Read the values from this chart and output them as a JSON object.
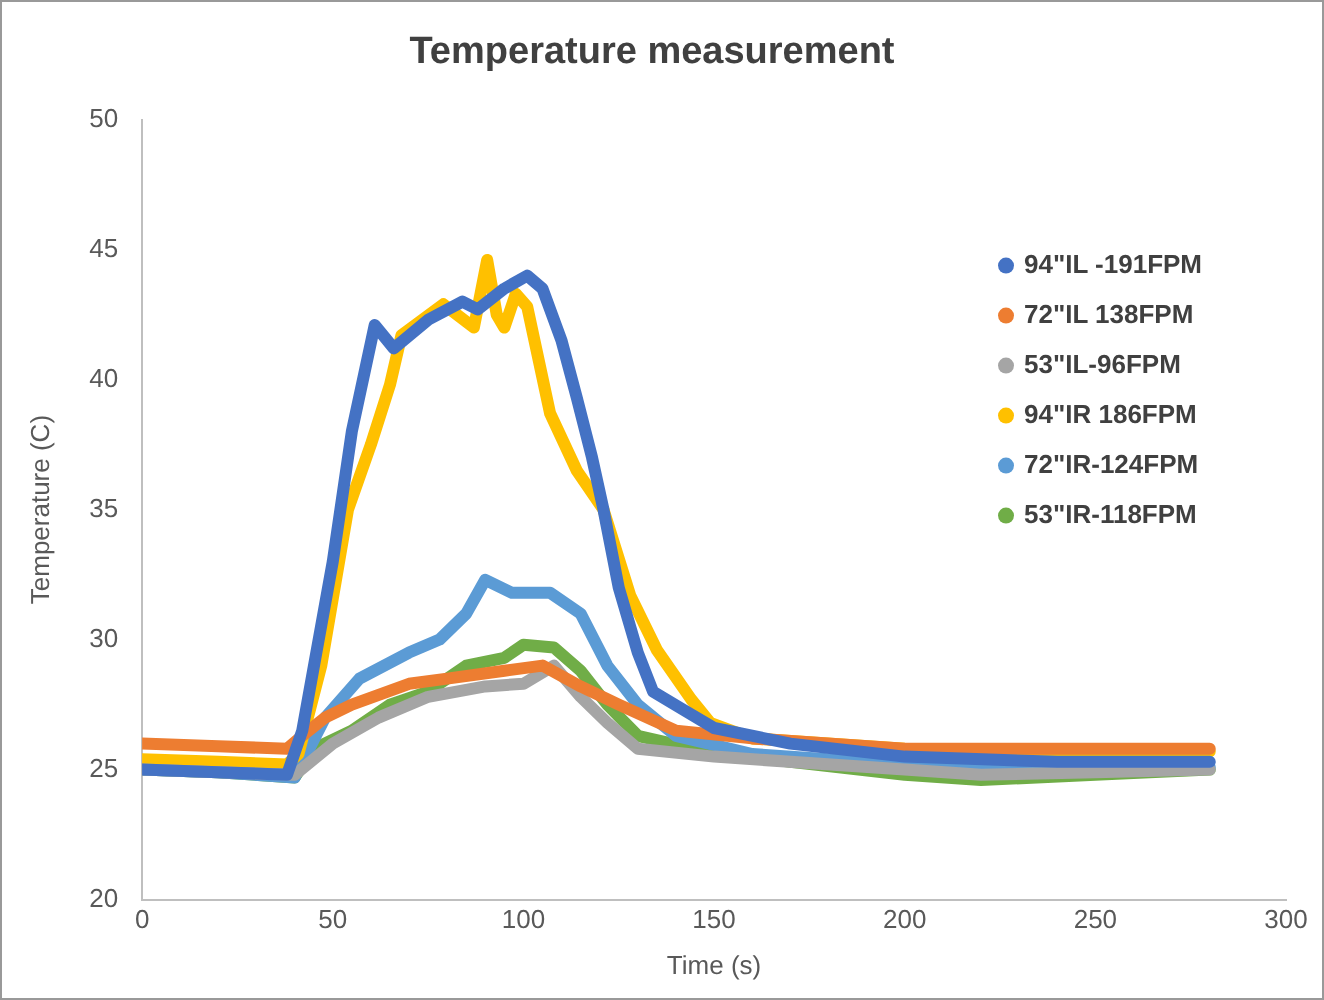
{
  "chart_data": {
    "type": "line",
    "title": "Temperature measurement",
    "xlabel": "Time (s)",
    "ylabel": "Temperature (C)",
    "xlim": [
      0,
      300
    ],
    "xticks": [
      0,
      50,
      100,
      150,
      200,
      250,
      300
    ],
    "ylim": [
      20,
      50
    ],
    "yticks": [
      20,
      25,
      30,
      35,
      40,
      45,
      50
    ],
    "grid": false,
    "legend": "right",
    "series": [
      {
        "name": "94\"IL -191FPM",
        "color": "#4472c4",
        "x": [
          0,
          20,
          38,
          42,
          50,
          55,
          61,
          66,
          75,
          84,
          88,
          95,
          101,
          105,
          110,
          114,
          118,
          121,
          125,
          130,
          134,
          142,
          150,
          170,
          200,
          240,
          280
        ],
        "values": [
          25.0,
          24.9,
          24.8,
          26.5,
          33,
          38,
          42.1,
          41.2,
          42.3,
          43,
          42.7,
          43.5,
          44,
          43.5,
          41.5,
          39.3,
          37,
          35,
          32,
          29.5,
          28,
          27.3,
          26.6,
          26,
          25.5,
          25.3,
          25.3
        ]
      },
      {
        "name": "72\"IL 138FPM",
        "color": "#ed7d31",
        "x": [
          0,
          20,
          38,
          42,
          48,
          55,
          70,
          80,
          95,
          105,
          115,
          125,
          140,
          160,
          200,
          240,
          280
        ],
        "values": [
          26.0,
          25.9,
          25.8,
          26.3,
          27,
          27.5,
          28.3,
          28.5,
          28.8,
          29,
          28.2,
          27.5,
          26.5,
          26.2,
          25.8,
          25.8,
          25.8
        ]
      },
      {
        "name": "53\"IL-96FPM",
        "color": "#a5a5a5",
        "x": [
          0,
          20,
          40,
          50,
          62,
          75,
          90,
          100,
          108,
          115,
          122,
          130,
          150,
          200,
          220,
          250,
          280
        ],
        "values": [
          25.0,
          24.9,
          24.8,
          26,
          27,
          27.8,
          28.2,
          28.3,
          29,
          27.8,
          26.8,
          25.8,
          25.5,
          25,
          24.8,
          24.9,
          25
        ]
      },
      {
        "name": "94\"IR 186FPM",
        "color": "#ffc000",
        "x": [
          0,
          20,
          38,
          41,
          47,
          54,
          60,
          65,
          68,
          79,
          87,
          90.5,
          93,
          95,
          98,
          101,
          107,
          114,
          121,
          128,
          135,
          144,
          149,
          160,
          200,
          240,
          280
        ],
        "values": [
          25.4,
          25.3,
          25.2,
          25.6,
          29,
          35,
          37.5,
          39.8,
          41.7,
          42.9,
          42,
          44.6,
          42.5,
          42,
          43.3,
          42.8,
          38.7,
          36.5,
          35,
          31.7,
          29.6,
          27.7,
          26.8,
          26.2,
          25.8,
          25.7,
          25.7
        ]
      },
      {
        "name": "72\"IR-124FPM",
        "color": "#5b9bd5",
        "x": [
          0,
          20,
          40,
          48,
          57,
          70,
          78,
          85,
          90,
          97,
          107,
          115,
          122,
          130,
          140,
          160,
          200,
          240,
          280
        ],
        "values": [
          25.0,
          24.9,
          24.7,
          27,
          28.5,
          29.5,
          30,
          31,
          32.3,
          31.8,
          31.8,
          31,
          29,
          27.5,
          26.3,
          25.6,
          25.2,
          25.1,
          25.1
        ]
      },
      {
        "name": "53\"IR-118FPM",
        "color": "#70ad47",
        "x": [
          0,
          20,
          40,
          45,
          55,
          65,
          75,
          85,
          95,
          100,
          108,
          115,
          122,
          130,
          145,
          170,
          200,
          220,
          250,
          280
        ],
        "values": [
          25.0,
          24.9,
          24.7,
          25.8,
          26.5,
          27.5,
          28,
          29,
          29.3,
          29.8,
          29.7,
          28.8,
          27.5,
          26.3,
          25.8,
          25.3,
          24.8,
          24.6,
          24.8,
          25
        ]
      }
    ]
  }
}
